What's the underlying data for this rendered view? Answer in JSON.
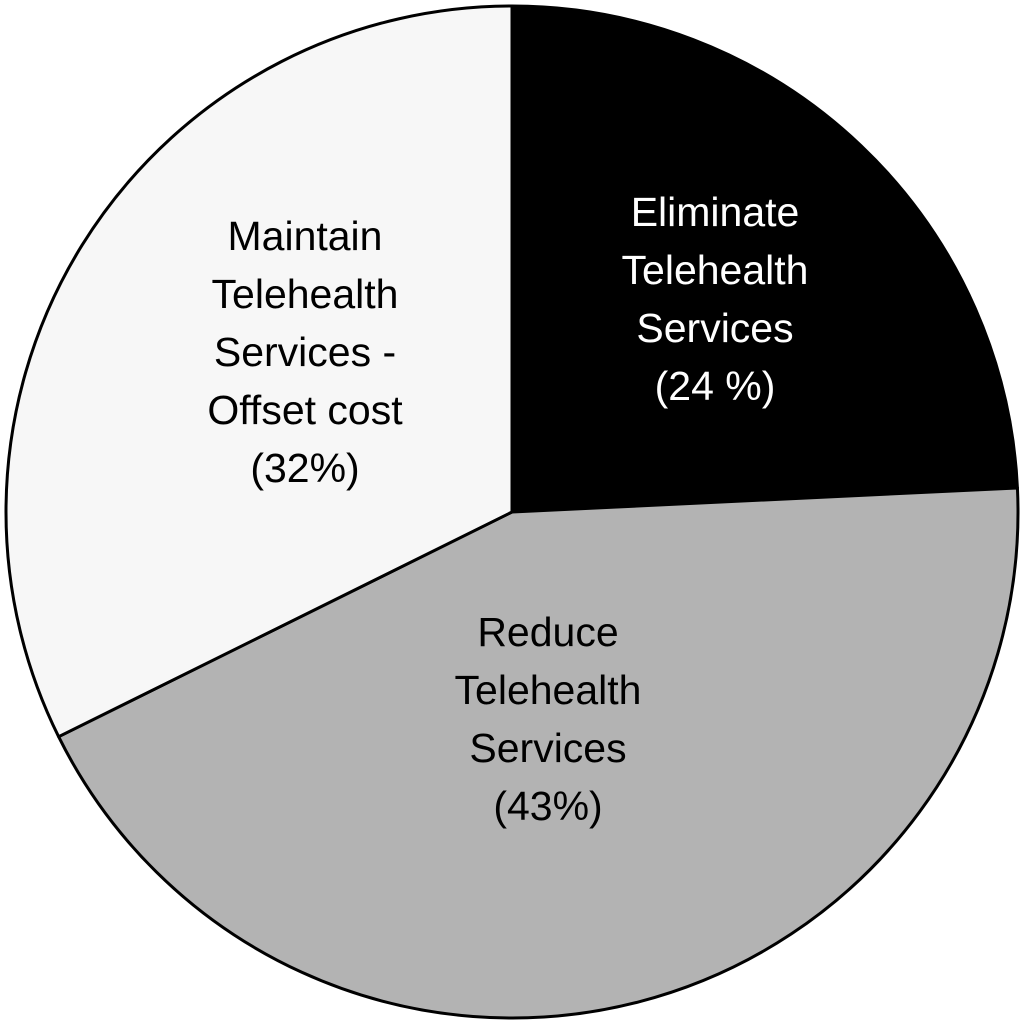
{
  "chart_data": {
    "type": "pie",
    "categories": [
      "Eliminate Telehealth Services",
      "Reduce Telehealth Services",
      "Maintain Telehealth Services - Offset cost"
    ],
    "values": [
      24,
      43,
      32
    ],
    "value_labels": [
      "(24 %)",
      "(43%)",
      "(32%)"
    ],
    "colors": [
      "#000000",
      "#b3b3b3",
      "#f7f7f7"
    ]
  }
}
